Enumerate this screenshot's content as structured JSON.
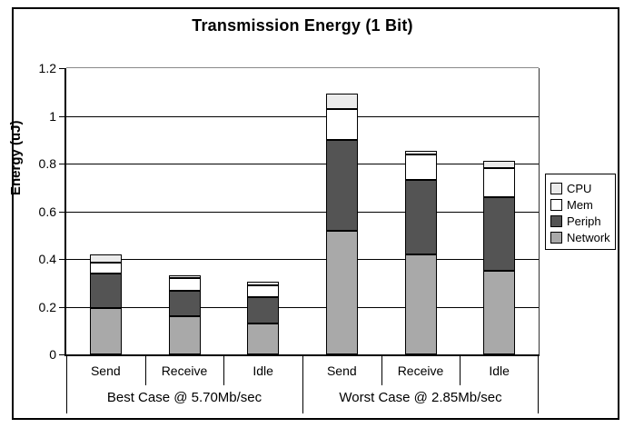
{
  "chart_data": {
    "type": "bar",
    "stacked": true,
    "title": "Transmission Energy (1 Bit)",
    "ylabel": "Energy (uJ)",
    "ylim": [
      0,
      1.2
    ],
    "yticks": [
      1.2,
      1,
      0.8,
      0.6,
      0.4,
      0.2,
      0
    ],
    "ytick_labels": [
      "1.2",
      "1",
      "0.8",
      "0.6",
      "0.4",
      "0.2",
      "0"
    ],
    "grid": true,
    "groups": [
      {
        "label": "Best Case @ 5.70Mb/sec",
        "categories": [
          "Send",
          "Receive",
          "Idle"
        ]
      },
      {
        "label": "Worst Case @ 2.85Mb/sec",
        "categories": [
          "Send",
          "Receive",
          "Idle"
        ]
      }
    ],
    "series": [
      {
        "name": "Network",
        "color": "#a9a9a9",
        "values": [
          0.195,
          0.16,
          0.13,
          0.52,
          0.42,
          0.35
        ]
      },
      {
        "name": "Periph",
        "color": "#545454",
        "values": [
          0.145,
          0.105,
          0.11,
          0.38,
          0.31,
          0.31
        ]
      },
      {
        "name": "Mem",
        "color": "#ffffff",
        "values": [
          0.045,
          0.055,
          0.05,
          0.13,
          0.11,
          0.12
        ]
      },
      {
        "name": "CPU",
        "color": "#ebebeb",
        "values": [
          0.035,
          0.01,
          0.015,
          0.065,
          0.015,
          0.03
        ]
      }
    ],
    "totals": [
      0.42,
      0.33,
      0.305,
      1.095,
      0.855,
      0.81
    ],
    "legend": {
      "position": "right",
      "entries": [
        "CPU",
        "Mem",
        "Periph",
        "Network"
      ]
    }
  }
}
